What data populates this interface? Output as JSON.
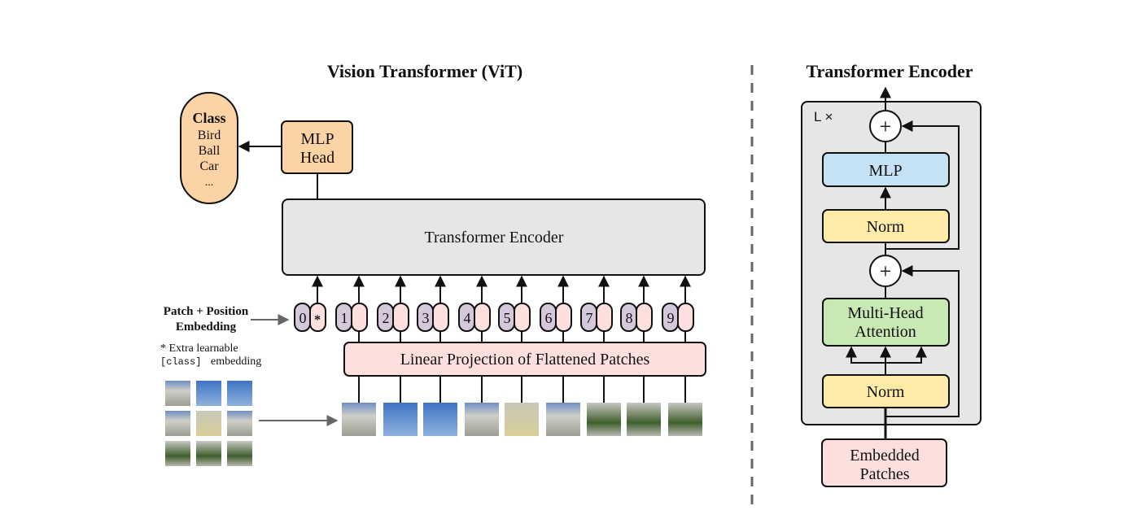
{
  "vit": {
    "title": "Vision Transformer (ViT)",
    "class_box": {
      "title": "Class",
      "items": [
        "Bird",
        "Ball",
        "Car",
        "..."
      ]
    },
    "mlp_head": {
      "line1": "MLP",
      "line2": "Head"
    },
    "encoder_label": "Transformer Encoder",
    "embedding_label": {
      "line1": "Patch + Position",
      "line2": "Embedding"
    },
    "footnote": {
      "line1": "* Extra learnable",
      "code": "[class]",
      "rest": "embedding"
    },
    "tokens": [
      "0",
      "1",
      "2",
      "3",
      "4",
      "5",
      "6",
      "7",
      "8",
      "9"
    ],
    "class_token_mark": "*",
    "linear_projection": "Linear Projection of Flattened Patches"
  },
  "encoder": {
    "title": "Transformer Encoder",
    "repeat_label": "L ×",
    "mlp": "MLP",
    "norm_top": "Norm",
    "plus": "+",
    "mha": {
      "line1": "Multi-Head",
      "line2": "Attention"
    },
    "norm_bottom": "Norm",
    "input": {
      "line1": "Embedded",
      "line2": "Patches"
    }
  },
  "colors": {
    "orange": "#fcd3a4",
    "gray_box": "#e6e6e6",
    "pink": "#fde0de",
    "purple": "#d5c8dc",
    "blue": "#c4e2f4",
    "yellow": "#fdeba7",
    "green": "#c9e9b4"
  }
}
